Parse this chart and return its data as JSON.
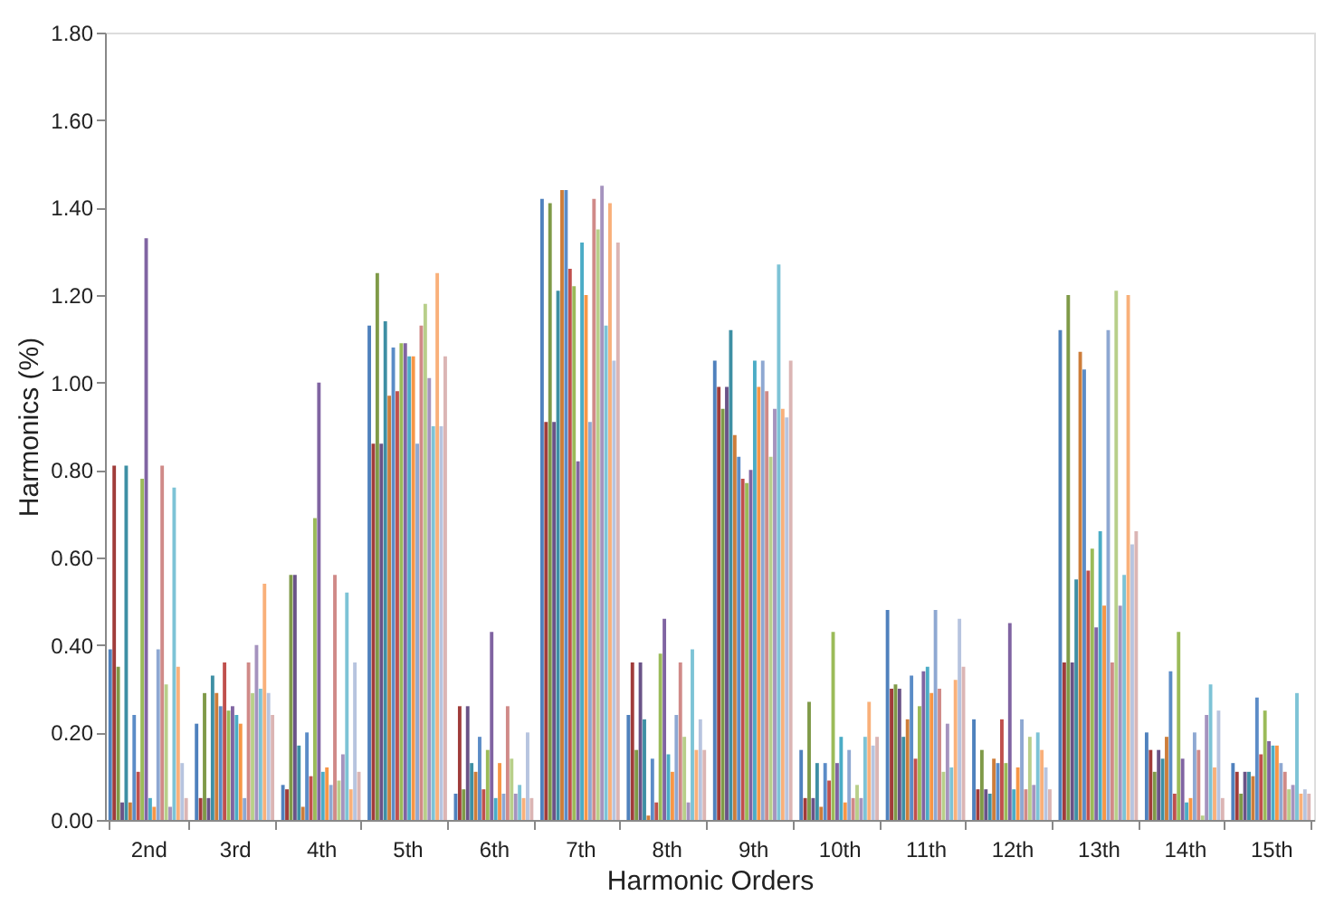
{
  "chart_data": {
    "type": "bar",
    "xlabel": "Harmonic Orders",
    "ylabel": "Harmonics (%)",
    "categories": [
      "2nd",
      "3rd",
      "4th",
      "5th",
      "6th",
      "7th",
      "8th",
      "9th",
      "10th",
      "11th",
      "12th",
      "13th",
      "14th",
      "15th"
    ],
    "ylim": [
      0,
      1.8
    ],
    "yticks": [
      {
        "value": 0,
        "label": "0.00"
      },
      {
        "value": 0.2,
        "label": "0.20"
      },
      {
        "value": 0.4,
        "label": "0.40"
      },
      {
        "value": 0.6,
        "label": "0.60"
      },
      {
        "value": 0.8,
        "label": "0.80"
      },
      {
        "value": 1,
        "label": "1.00"
      },
      {
        "value": 1.2,
        "label": "1.20"
      },
      {
        "value": 1.4,
        "label": "1.40"
      },
      {
        "value": 1.6,
        "label": "1.60"
      },
      {
        "value": 1.8,
        "label": "1.80"
      }
    ],
    "grid": false,
    "legend": false,
    "series": [
      {
        "color": "#4F81BD",
        "values": [
          0.39,
          0.22,
          0.08,
          1.13,
          0.06,
          1.42,
          0.24,
          1.05,
          0.16,
          0.48,
          0.23,
          1.12,
          0.2,
          0.13
        ]
      },
      {
        "color": "#A03C3A",
        "values": [
          0.81,
          0.05,
          0.07,
          0.86,
          0.26,
          0.91,
          0.36,
          0.99,
          0.05,
          0.3,
          0.07,
          0.36,
          0.16,
          0.11
        ]
      },
      {
        "color": "#7F9A48",
        "values": [
          0.35,
          0.29,
          0.56,
          1.25,
          0.07,
          1.41,
          0.16,
          0.94,
          0.27,
          0.31,
          0.16,
          1.2,
          0.11,
          0.06
        ]
      },
      {
        "color": "#6A5387",
        "values": [
          0.04,
          0.05,
          0.56,
          0.86,
          0.26,
          0.91,
          0.36,
          0.99,
          0.05,
          0.3,
          0.07,
          0.36,
          0.16,
          0.11
        ]
      },
      {
        "color": "#3E8FA4",
        "values": [
          0.81,
          0.33,
          0.17,
          1.14,
          0.13,
          1.21,
          0.23,
          1.12,
          0.13,
          0.19,
          0.06,
          0.55,
          0.14,
          0.11
        ]
      },
      {
        "color": "#CD7D3A",
        "values": [
          0.04,
          0.29,
          0.03,
          0.97,
          0.11,
          1.44,
          0.01,
          0.88,
          0.03,
          0.23,
          0.14,
          1.07,
          0.19,
          0.1
        ]
      },
      {
        "color": "#5B8CC7",
        "values": [
          0.24,
          0.26,
          0.2,
          1.08,
          0.19,
          1.44,
          0.14,
          0.83,
          0.13,
          0.33,
          0.13,
          1.03,
          0.34,
          0.28
        ]
      },
      {
        "color": "#C0504D",
        "values": [
          0.11,
          0.36,
          0.1,
          0.98,
          0.07,
          1.26,
          0.04,
          0.78,
          0.09,
          0.14,
          0.23,
          0.57,
          0.06,
          0.15
        ]
      },
      {
        "color": "#9BBB59",
        "values": [
          0.78,
          0.25,
          0.69,
          1.09,
          0.16,
          1.22,
          0.38,
          0.77,
          0.43,
          0.26,
          0.13,
          0.62,
          0.43,
          0.25
        ]
      },
      {
        "color": "#8064A2",
        "values": [
          1.33,
          0.26,
          1.0,
          1.09,
          0.43,
          0.82,
          0.46,
          0.8,
          0.13,
          0.34,
          0.45,
          0.44,
          0.14,
          0.18
        ]
      },
      {
        "color": "#4BACC6",
        "values": [
          0.05,
          0.24,
          0.11,
          1.06,
          0.05,
          1.32,
          0.15,
          1.05,
          0.19,
          0.35,
          0.07,
          0.66,
          0.04,
          0.17
        ]
      },
      {
        "color": "#F79646",
        "values": [
          0.03,
          0.22,
          0.12,
          1.06,
          0.13,
          1.2,
          0.11,
          0.99,
          0.04,
          0.29,
          0.12,
          0.49,
          0.05,
          0.17
        ]
      },
      {
        "color": "#8EA8D2",
        "values": [
          0.39,
          0.05,
          0.08,
          0.86,
          0.06,
          0.91,
          0.24,
          1.05,
          0.16,
          0.48,
          0.23,
          1.12,
          0.2,
          0.13
        ]
      },
      {
        "color": "#D08A88",
        "values": [
          0.81,
          0.36,
          0.56,
          1.13,
          0.26,
          1.42,
          0.36,
          0.98,
          0.05,
          0.3,
          0.07,
          0.36,
          0.16,
          0.11
        ]
      },
      {
        "color": "#B8CF8A",
        "values": [
          0.31,
          0.29,
          0.09,
          1.18,
          0.14,
          1.35,
          0.19,
          0.83,
          0.08,
          0.11,
          0.19,
          1.21,
          0.01,
          0.07
        ]
      },
      {
        "color": "#A593BE",
        "values": [
          0.03,
          0.4,
          0.15,
          1.01,
          0.06,
          1.45,
          0.04,
          0.94,
          0.05,
          0.22,
          0.08,
          0.49,
          0.24,
          0.08
        ]
      },
      {
        "color": "#7DC3D6",
        "values": [
          0.76,
          0.3,
          0.52,
          0.9,
          0.08,
          1.13,
          0.39,
          1.27,
          0.19,
          0.12,
          0.2,
          0.56,
          0.31,
          0.29
        ]
      },
      {
        "color": "#F9B07A",
        "values": [
          0.35,
          0.54,
          0.07,
          1.25,
          0.05,
          1.41,
          0.16,
          0.94,
          0.27,
          0.32,
          0.16,
          1.2,
          0.12,
          0.06
        ]
      },
      {
        "color": "#B7C4DF",
        "values": [
          0.13,
          0.29,
          0.36,
          0.9,
          0.2,
          1.05,
          0.23,
          0.92,
          0.17,
          0.46,
          0.12,
          0.63,
          0.25,
          0.07
        ]
      },
      {
        "color": "#DBB5B4",
        "values": [
          0.05,
          0.24,
          0.11,
          1.06,
          0.05,
          1.32,
          0.16,
          1.05,
          0.19,
          0.35,
          0.07,
          0.66,
          0.05,
          0.06
        ]
      }
    ]
  }
}
